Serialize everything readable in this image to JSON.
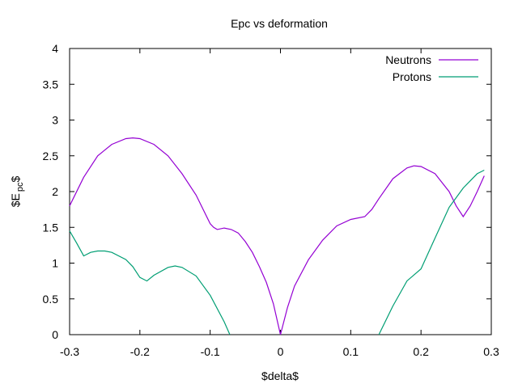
{
  "chart_data": {
    "type": "line",
    "title": "Epc vs deformation",
    "xlabel": "$delta$",
    "ylabel_main": "$E",
    "ylabel_sub": "pc",
    "ylabel_end": "$",
    "xlim": [
      -0.3,
      0.3
    ],
    "ylim": [
      0,
      4
    ],
    "xticks": [
      -0.3,
      -0.2,
      -0.1,
      0,
      0.1,
      0.2,
      0.3
    ],
    "xtick_labels": [
      "-0.3",
      "-0.2",
      "-0.1",
      "0",
      "0.1",
      "0.2",
      "0.3"
    ],
    "yticks": [
      0,
      0.5,
      1,
      1.5,
      2,
      2.5,
      3,
      3.5,
      4
    ],
    "ytick_labels": [
      "0",
      "0.5",
      "1",
      "1.5",
      "2",
      "2.5",
      "3",
      "3.5",
      "4"
    ],
    "grid": false,
    "legend_position": "top-right",
    "series": [
      {
        "name": "Neutrons",
        "color": "#9400d3",
        "x": [
          -0.3,
          -0.28,
          -0.26,
          -0.24,
          -0.22,
          -0.21,
          -0.2,
          -0.18,
          -0.16,
          -0.14,
          -0.12,
          -0.11,
          -0.1,
          -0.095,
          -0.09,
          -0.08,
          -0.07,
          -0.06,
          -0.05,
          -0.04,
          -0.03,
          -0.02,
          -0.01,
          0,
          0.01,
          0.02,
          0.04,
          0.06,
          0.08,
          0.1,
          0.12,
          0.13,
          0.14,
          0.16,
          0.18,
          0.19,
          0.2,
          0.22,
          0.24,
          0.25,
          0.26,
          0.27,
          0.28,
          0.29
        ],
        "y": [
          1.8,
          2.2,
          2.5,
          2.66,
          2.74,
          2.75,
          2.74,
          2.66,
          2.5,
          2.25,
          1.95,
          1.75,
          1.55,
          1.5,
          1.47,
          1.49,
          1.47,
          1.42,
          1.3,
          1.15,
          0.95,
          0.73,
          0.43,
          0.0,
          0.38,
          0.68,
          1.05,
          1.32,
          1.52,
          1.61,
          1.65,
          1.75,
          1.9,
          2.18,
          2.33,
          2.36,
          2.35,
          2.25,
          2.0,
          1.8,
          1.65,
          1.8,
          2.0,
          2.22
        ]
      },
      {
        "name": "Protons",
        "color": "#009e73",
        "x": [
          -0.3,
          -0.29,
          -0.28,
          -0.27,
          -0.26,
          -0.25,
          -0.24,
          -0.22,
          -0.21,
          -0.2,
          -0.19,
          -0.18,
          -0.16,
          -0.15,
          -0.14,
          -0.12,
          -0.1,
          -0.08,
          -0.072
        ],
        "y": [
          1.45,
          1.28,
          1.1,
          1.15,
          1.17,
          1.17,
          1.15,
          1.05,
          0.95,
          0.8,
          0.75,
          0.83,
          0.94,
          0.96,
          0.94,
          0.82,
          0.55,
          0.18,
          0.0
        ],
        "x2": [
          0.14,
          0.16,
          0.18,
          0.2,
          0.22,
          0.24,
          0.26,
          0.28,
          0.29
        ],
        "y2": [
          0.0,
          0.4,
          0.75,
          0.92,
          1.35,
          1.78,
          2.05,
          2.25,
          2.3
        ]
      }
    ]
  }
}
